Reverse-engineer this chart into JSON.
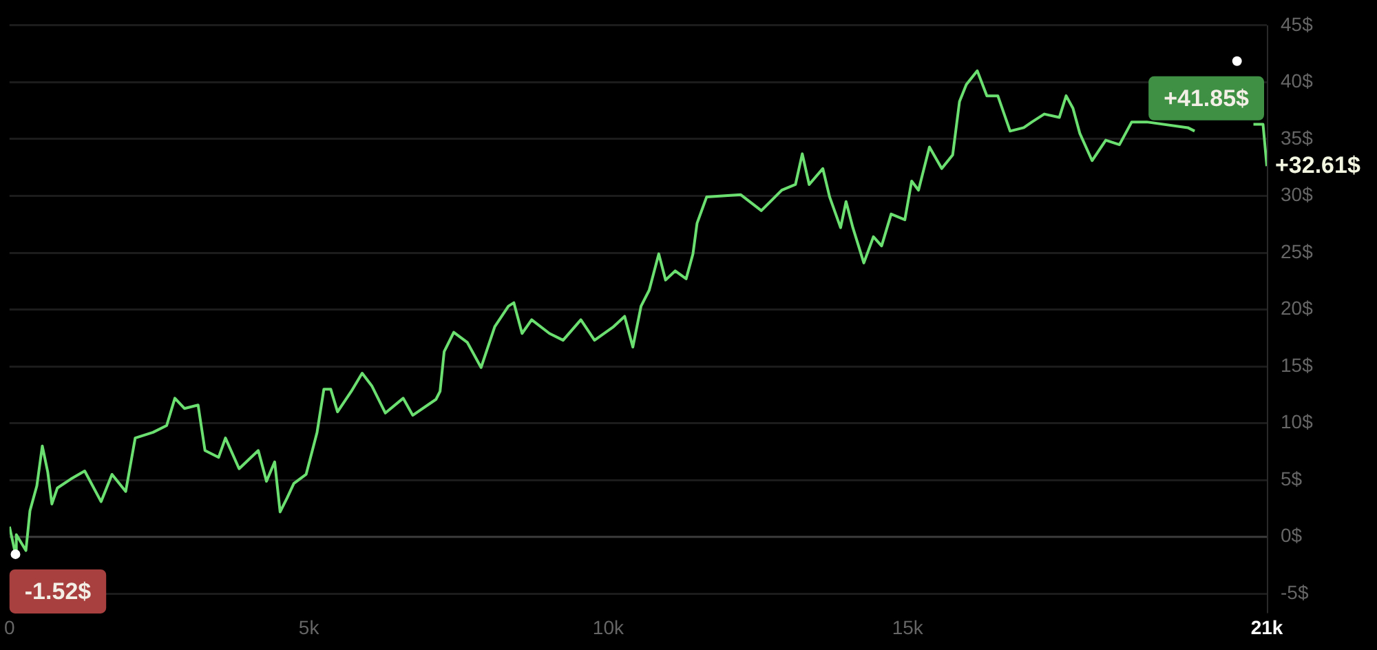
{
  "chart_data": {
    "type": "line",
    "marker": "none",
    "grid": "y",
    "legend": false,
    "xlim": [
      0,
      21000
    ],
    "ylim": [
      -6.7,
      45
    ],
    "xticks": [
      {
        "value": 0,
        "label": "0"
      },
      {
        "value": 5000,
        "label": "5k"
      },
      {
        "value": 10000,
        "label": "10k"
      },
      {
        "value": 15000,
        "label": "15k"
      },
      {
        "value": 21000,
        "label": "21k"
      }
    ],
    "yticks": [
      {
        "value": -5,
        "label": "-5$"
      },
      {
        "value": 0,
        "label": "0$"
      },
      {
        "value": 5,
        "label": "5$"
      },
      {
        "value": 10,
        "label": "10$"
      },
      {
        "value": 15,
        "label": "15$"
      },
      {
        "value": 20,
        "label": "20$"
      },
      {
        "value": 25,
        "label": "25$"
      },
      {
        "value": 30,
        "label": "30$"
      },
      {
        "value": 35,
        "label": "35$"
      },
      {
        "value": 40,
        "label": "40$"
      },
      {
        "value": 45,
        "label": "45$"
      }
    ],
    "ref_lines": [
      {
        "axis": "y",
        "value": 0,
        "color": "#3a3a3a"
      }
    ],
    "series": [
      {
        "color": "#6be070",
        "x": [
          0,
          100,
          114,
          274,
          342,
          457,
          548,
          639,
          708,
          799,
          1027,
          1256,
          1530,
          1712,
          1941,
          2100,
          2397,
          2625,
          2762,
          2922,
          3150,
          3265,
          3493,
          3607,
          3835,
          4155,
          4292,
          4429,
          4520,
          4634,
          4749,
          4954,
          5137,
          5251,
          5365,
          5479,
          5708,
          5890,
          6050,
          6278,
          6575,
          6735,
          7123,
          7191,
          7260,
          7420,
          7648,
          7876,
          8105,
          8333,
          8424,
          8561,
          8721,
          9018,
          9246,
          9543,
          9771,
          10091,
          10274,
          10411,
          10548,
          10684,
          10844,
          10958,
          11118,
          11301,
          11415,
          11484,
          11643,
          12214,
          12557,
          12899,
          13127,
          13241,
          13356,
          13584,
          13698,
          13881,
          13972,
          14086,
          14269,
          14429,
          14566,
          14725,
          14954,
          15068,
          15182,
          15365,
          15570,
          15753,
          15867,
          15981,
          16164,
          16324,
          16507,
          16712,
          16940,
          17077,
          17283,
          17534,
          17648,
          17762,
          17876,
          18081,
          18310,
          18538,
          18743,
          18995,
          19680,
          19794,
          20400,
          20502,
          20600,
          20776,
          20936,
          21000
        ],
        "values": [
          0.9,
          -1.52,
          0.2,
          -1.2,
          2.3,
          4.5,
          8.0,
          5.7,
          2.9,
          4.3,
          5.1,
          5.8,
          3.1,
          5.5,
          4.0,
          8.7,
          9.2,
          9.8,
          12.2,
          11.3,
          11.6,
          7.6,
          7.0,
          8.7,
          6.0,
          7.6,
          4.9,
          6.6,
          2.2,
          3.4,
          4.7,
          5.5,
          9.2,
          13.0,
          13.0,
          11.0,
          12.8,
          14.4,
          13.3,
          10.9,
          12.2,
          10.7,
          12.1,
          12.8,
          16.3,
          18.0,
          17.1,
          14.9,
          18.5,
          20.3,
          20.6,
          17.9,
          19.1,
          17.9,
          17.3,
          19.1,
          17.3,
          18.5,
          19.4,
          16.7,
          20.3,
          21.7,
          24.9,
          22.6,
          23.4,
          22.7,
          24.9,
          27.6,
          29.9,
          30.1,
          28.7,
          30.5,
          31.0,
          33.7,
          31.0,
          32.4,
          29.9,
          27.2,
          29.5,
          27.2,
          24.1,
          26.4,
          25.6,
          28.4,
          27.9,
          31.3,
          30.5,
          34.3,
          32.4,
          33.6,
          38.3,
          39.8,
          41.0,
          38.8,
          38.8,
          35.7,
          36.0,
          36.5,
          37.2,
          36.9,
          38.8,
          37.7,
          35.5,
          33.1,
          34.9,
          34.5,
          36.5,
          36.5,
          36.0,
          35.7,
          null,
          null,
          null,
          36.3,
          36.3,
          32.61
        ]
      }
    ],
    "annotations": [
      {
        "text": "-1.52$",
        "x": 100,
        "y": -1.52
      },
      {
        "text": "+41.85$",
        "x": 20502,
        "y": 41.85
      },
      {
        "text": "+32.61$",
        "x": 21000,
        "y": 32.61
      }
    ]
  }
}
